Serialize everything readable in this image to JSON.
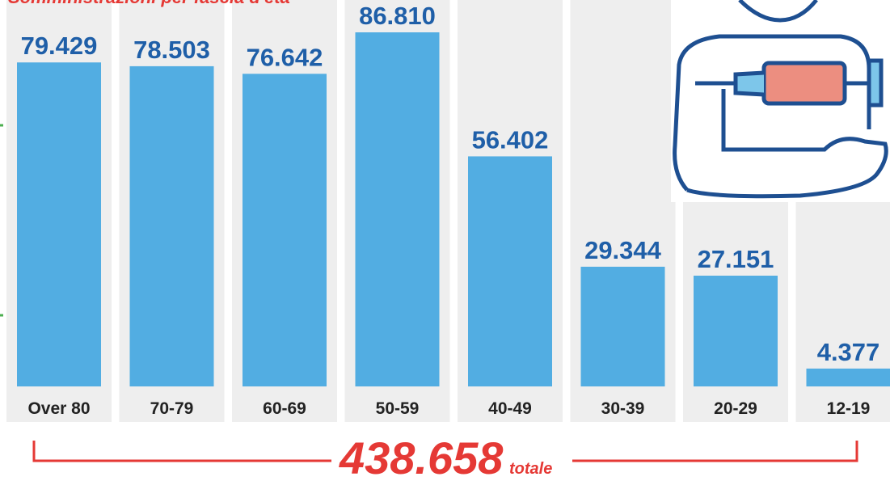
{
  "chart_data": {
    "type": "bar",
    "title": "Somministrazioni per fascia d'età",
    "categories": [
      "Over 80",
      "70-79",
      "60-69",
      "50-59",
      "40-49",
      "30-39",
      "20-29",
      "12-19"
    ],
    "values": [
      79429,
      78503,
      76642,
      86810,
      56402,
      29344,
      27151,
      4377
    ],
    "value_labels": [
      "79.429",
      "78.503",
      "76.642",
      "86.810",
      "56.402",
      "29.344",
      "27.151",
      "4.377"
    ],
    "color": "#52ade2",
    "total": "438.658",
    "total_label": "totale"
  }
}
